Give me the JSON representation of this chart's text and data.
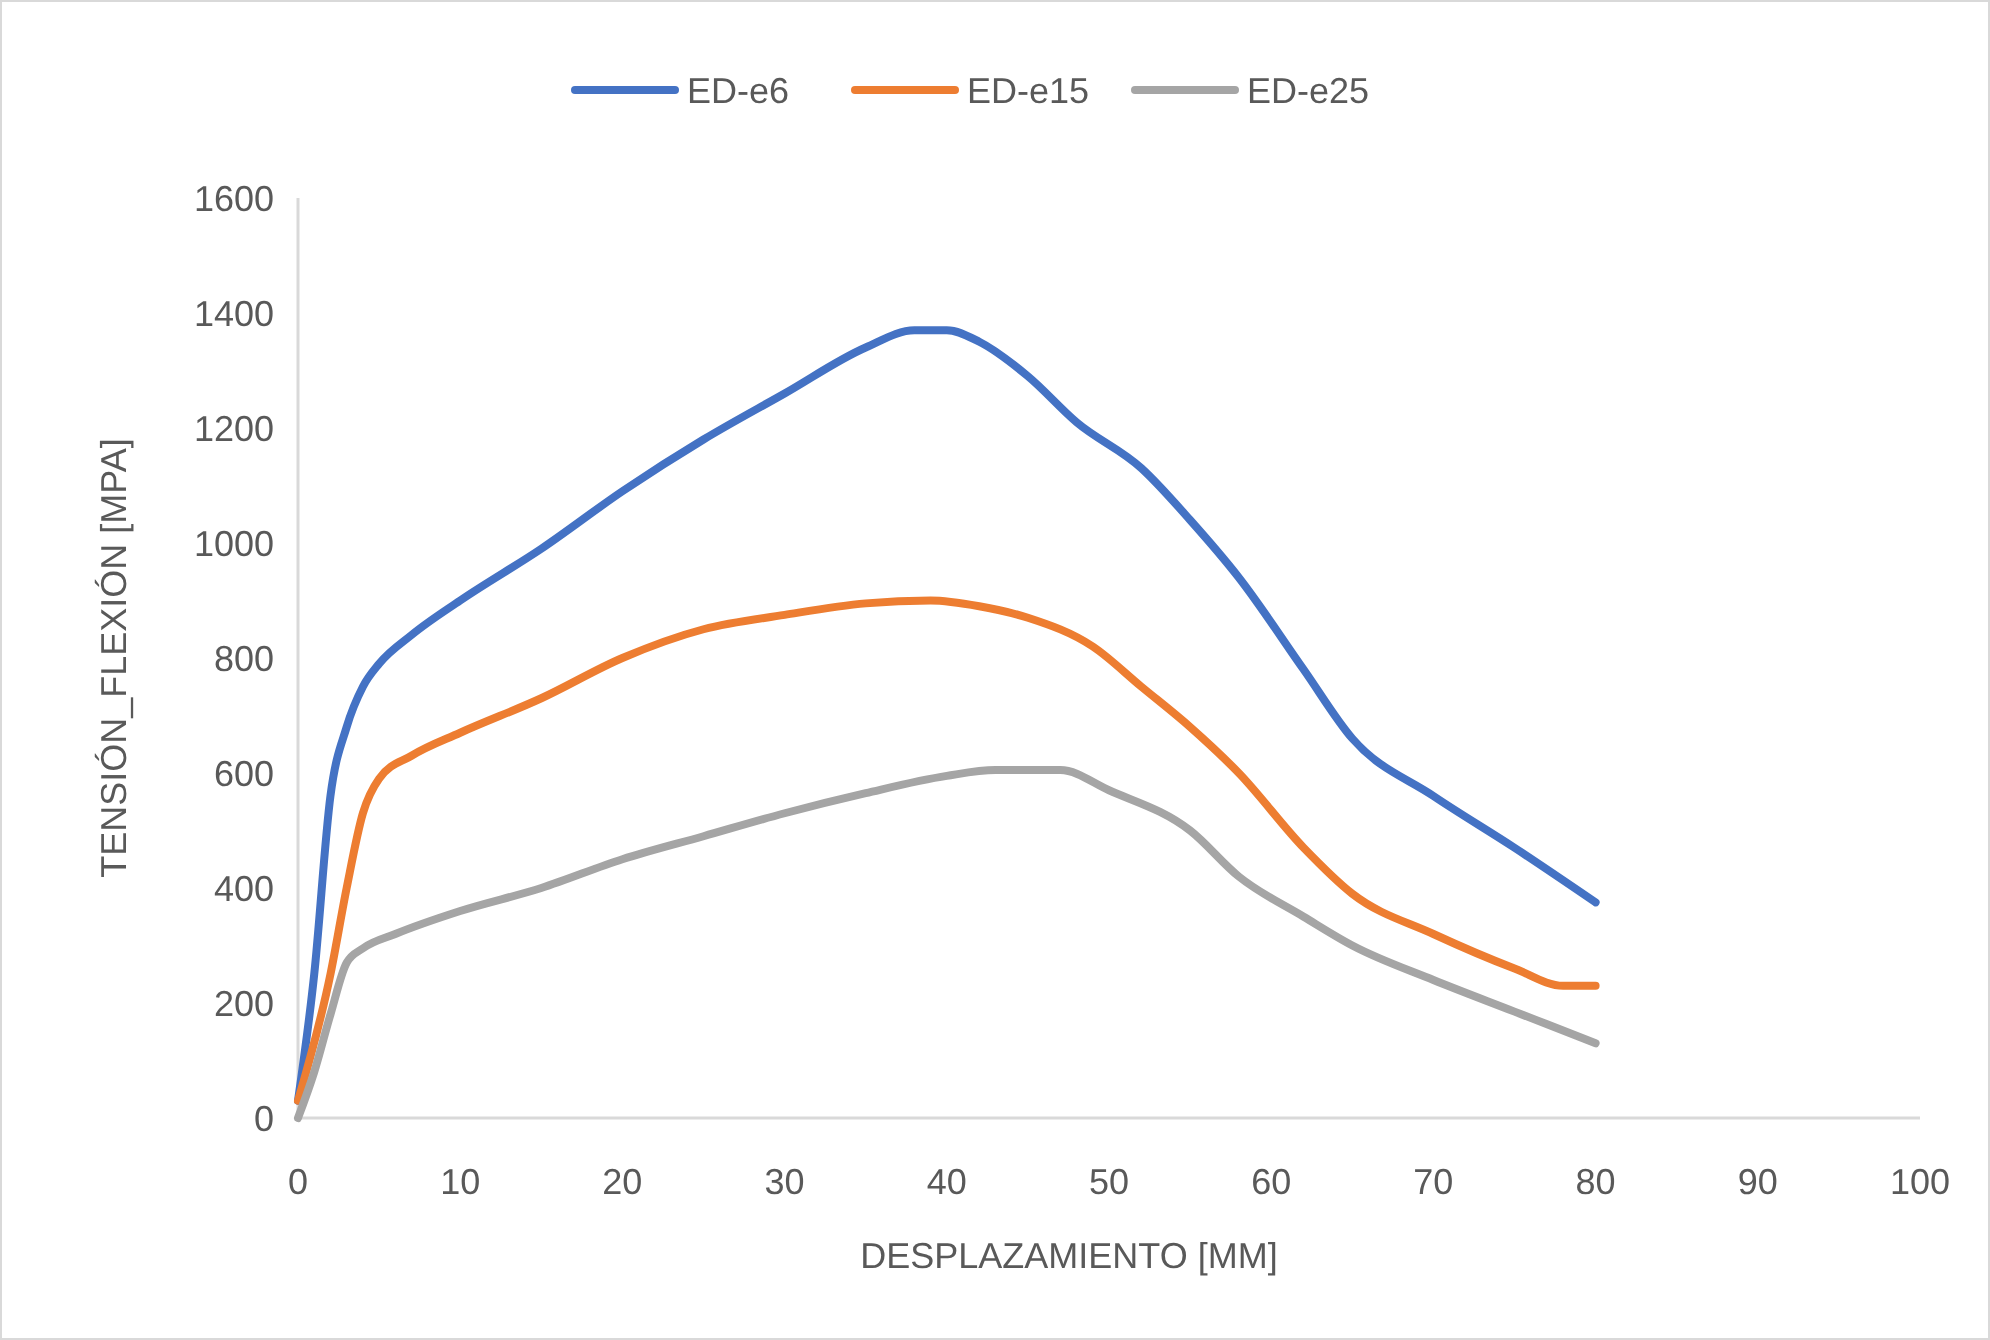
{
  "chart_data": {
    "type": "line",
    "xlabel": "DESPLAZAMIENTO [MM]",
    "ylabel": "TENSIÓN_FLEXIÓN [MPA]",
    "legend": "top",
    "grid": false,
    "marker": "none",
    "line_style": "solid",
    "xlim": [
      0,
      100
    ],
    "xticks": [
      0,
      10,
      20,
      30,
      40,
      50,
      60,
      70,
      80,
      90,
      100
    ],
    "ylim": [
      0,
      1600
    ],
    "yticks": [
      0,
      200,
      400,
      600,
      800,
      1000,
      1200,
      1400,
      1600
    ],
    "series": [
      {
        "name": "ED-e6",
        "color": "#4472c4",
        "x": [
          0,
          1,
          2,
          3,
          4,
          5,
          7,
          10,
          15,
          20,
          25,
          30,
          35,
          38,
          40,
          42,
          45,
          48,
          52,
          55,
          58,
          62,
          65,
          70,
          75,
          80
        ],
        "values": [
          30,
          250,
          560,
          680,
          750,
          790,
          840,
          900,
          990,
          1090,
          1180,
          1260,
          1340,
          1370,
          1370,
          1350,
          1290,
          1210,
          1130,
          1040,
          940,
          780,
          660,
          560,
          470,
          375
        ]
      },
      {
        "name": "ED-e15",
        "color": "#ed7d31",
        "x": [
          0,
          2,
          3,
          4,
          5,
          7,
          10,
          15,
          20,
          25,
          30,
          35,
          39,
          42,
          45,
          49,
          52,
          55,
          58,
          62,
          65,
          70,
          75,
          78,
          80
        ],
        "values": [
          30,
          250,
          400,
          530,
          590,
          630,
          670,
          730,
          800,
          850,
          875,
          895,
          900,
          890,
          870,
          820,
          750,
          680,
          600,
          470,
          390,
          320,
          260,
          230,
          230
        ]
      },
      {
        "name": "ED-e25",
        "color": "#a5a5a5",
        "x": [
          0,
          1,
          2,
          3,
          4,
          6,
          10,
          15,
          20,
          25,
          30,
          35,
          40,
          43,
          47,
          50,
          55,
          58,
          62,
          65,
          70,
          75,
          80
        ],
        "values": [
          0,
          80,
          180,
          270,
          295,
          320,
          360,
          400,
          450,
          490,
          530,
          565,
          595,
          605,
          605,
          570,
          500,
          420,
          350,
          300,
          240,
          185,
          130
        ]
      }
    ]
  }
}
